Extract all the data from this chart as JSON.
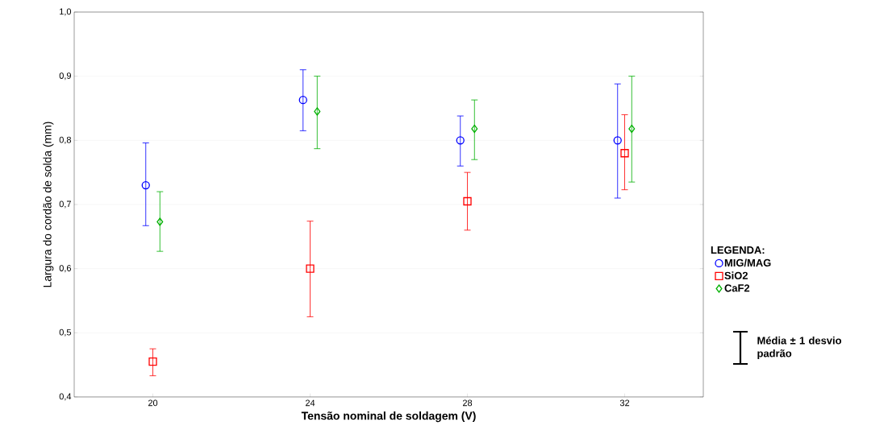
{
  "chart_data": {
    "type": "scatter",
    "xlabel": "Tensão nominal de soldagem (V)",
    "ylabel": "Largura do cordão de solda (mm)",
    "legend_title": "LEGENDA:",
    "categories": [
      "20",
      "24",
      "28",
      "32"
    ],
    "series": [
      {
        "name": "MIG/MAG",
        "color": "#0000ff",
        "marker": "circle",
        "values": [
          0.73,
          0.863,
          0.8,
          0.8
        ],
        "errors": [
          [
            0.667,
            0.796
          ],
          [
            0.815,
            0.91
          ],
          [
            0.76,
            0.838
          ],
          [
            0.71,
            0.888
          ]
        ]
      },
      {
        "name": "SiO2",
        "color": "#ff0000",
        "marker": "square",
        "values": [
          0.455,
          0.6,
          0.705,
          0.78
        ],
        "errors": [
          [
            0.433,
            0.475
          ],
          [
            0.525,
            0.674
          ],
          [
            0.66,
            0.75
          ],
          [
            0.723,
            0.84
          ]
        ]
      },
      {
        "name": "CaF2",
        "color": "#00b000",
        "marker": "diamond",
        "values": [
          0.673,
          0.845,
          0.818,
          0.818
        ],
        "errors": [
          [
            0.627,
            0.72
          ],
          [
            0.787,
            0.9
          ],
          [
            0.77,
            0.863
          ],
          [
            0.735,
            0.9
          ]
        ]
      }
    ],
    "ylim": [
      0.4,
      1.0
    ],
    "yticks": [
      {
        "value": 0.4,
        "label": "0,4"
      },
      {
        "value": 0.5,
        "label": "0,5"
      },
      {
        "value": 0.6,
        "label": "0,6"
      },
      {
        "value": 0.7,
        "label": "0,7"
      },
      {
        "value": 0.8,
        "label": "0,8"
      },
      {
        "value": 0.9,
        "label": "0,9"
      },
      {
        "value": 1.0,
        "label": "1,0"
      }
    ],
    "grid": "y",
    "legend": "right",
    "annotations": [
      "Média ± 1 desvio padrão"
    ]
  }
}
